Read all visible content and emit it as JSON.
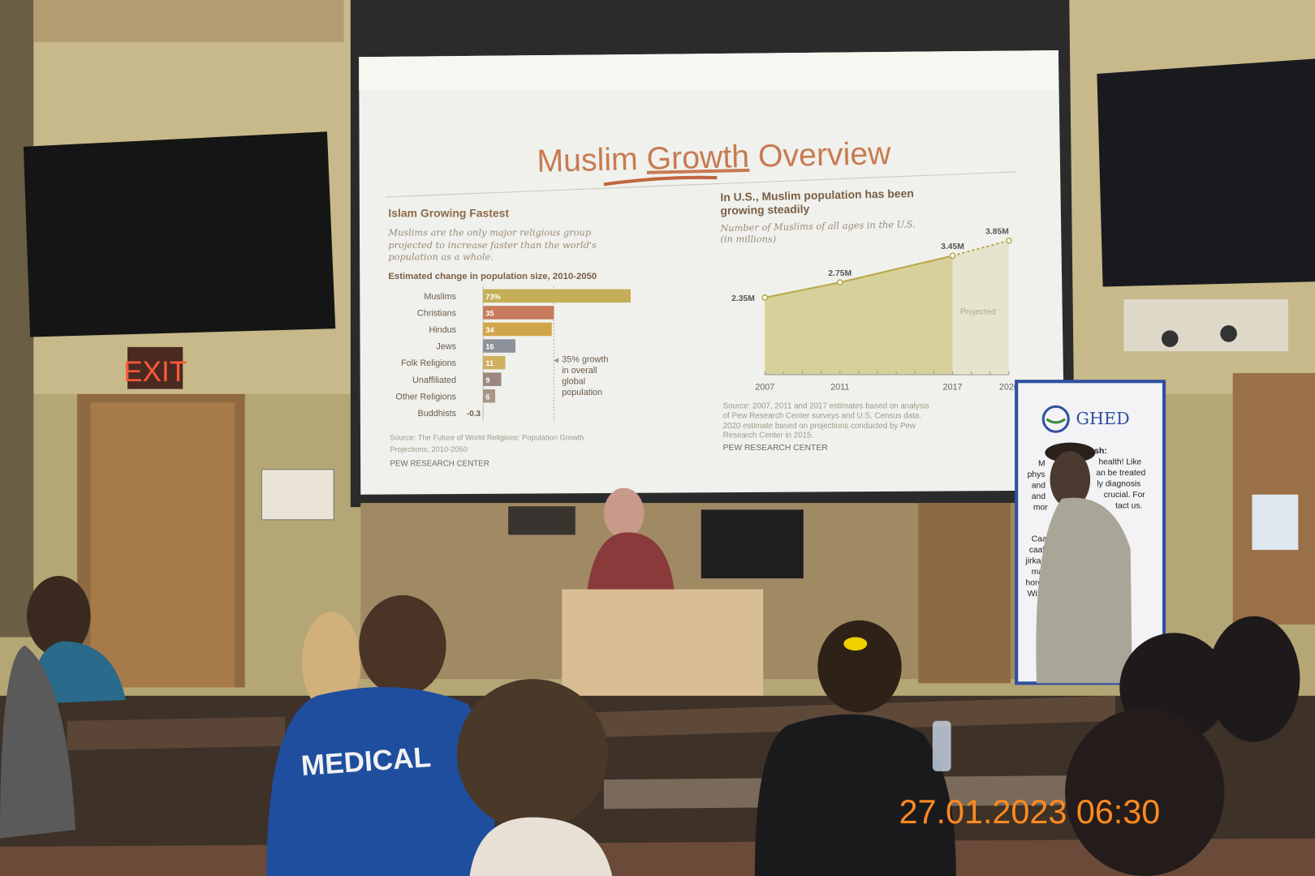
{
  "slide": {
    "title_parts": [
      "Muslim ",
      "Growth",
      " Overview"
    ],
    "left_panel": {
      "heading": "Islam Growing Fastest",
      "subtitle_lines": [
        "Muslims are the only major religious group",
        "projected to increase faster than the world's",
        "population as a whole."
      ],
      "chart_title": "Estimated change in population size, 2010-2050",
      "annotation_lines": [
        "35% growth",
        "in overall",
        "global",
        "population"
      ],
      "source_lines": [
        "Source: The Future of World Religions: Population Growth",
        "Projections, 2010-2050"
      ],
      "credit": "PEW RESEARCH CENTER"
    },
    "right_panel": {
      "heading_lines": [
        "In U.S., Muslim population has been",
        "growing steadily"
      ],
      "subtitle_lines": [
        "Number of Muslims of all ages in the U.S.",
        "(in millions)"
      ],
      "projected_label": "Projected",
      "source_lines": [
        "Source: 2007, 2011 and 2017 estimates based on analysis",
        "of Pew Research Center surveys and U.S. Census data.",
        "2020 estimate based on projections conducted by Pew",
        "Research Center in 2015."
      ],
      "credit": "PEW RESEARCH CENTER"
    }
  },
  "chart_data": [
    {
      "type": "bar",
      "title": "Estimated change in population size, 2010-2050",
      "categories": [
        "Muslims",
        "Christians",
        "Hindus",
        "Jews",
        "Folk Religions",
        "Unaffiliated",
        "Other Religions",
        "Buddhists"
      ],
      "values": [
        73,
        35,
        34,
        16,
        11,
        9,
        6,
        -0.3
      ],
      "value_labels": [
        "73%",
        "35",
        "34",
        "16",
        "11",
        "9",
        "6",
        "-0.3"
      ],
      "colors": [
        "#c4ae58",
        "#c77a5c",
        "#d1a64a",
        "#8d929a",
        "#cfb062",
        "#9b8682",
        "#a99684",
        "#a99684"
      ],
      "reference_line": 35
    },
    {
      "type": "area",
      "title": "In U.S., Muslim population has been growing steadily",
      "x": [
        2007,
        2011,
        2017,
        2020
      ],
      "y": [
        2.35,
        2.75,
        3.45,
        3.85
      ],
      "value_labels": [
        "2.35M",
        "2.75M",
        "3.45M",
        "3.85M"
      ],
      "x_tick_labels": [
        "2007",
        "2011",
        "2017",
        "2020"
      ],
      "projected_from": 2017,
      "fill_color": "#d6d09a",
      "line_color": "#b8a84a"
    }
  ],
  "room": {
    "exit_sign": "EXIT",
    "banner_logo": "GHED",
    "banner_text_lines": [
      "sh:",
      "health! Like",
      "an be treated",
      "ly diagnosis",
      "crucial. For",
      "tact us."
    ],
    "banner_text_left": [
      "M",
      "phys",
      "and",
      "and",
      "mor",
      "Caaf",
      "caaf",
      "jirka,",
      "ma",
      "hore",
      "Wixi"
    ],
    "shirt_text": "MEDICAL",
    "timestamp": "27.01.2023 06:30"
  }
}
